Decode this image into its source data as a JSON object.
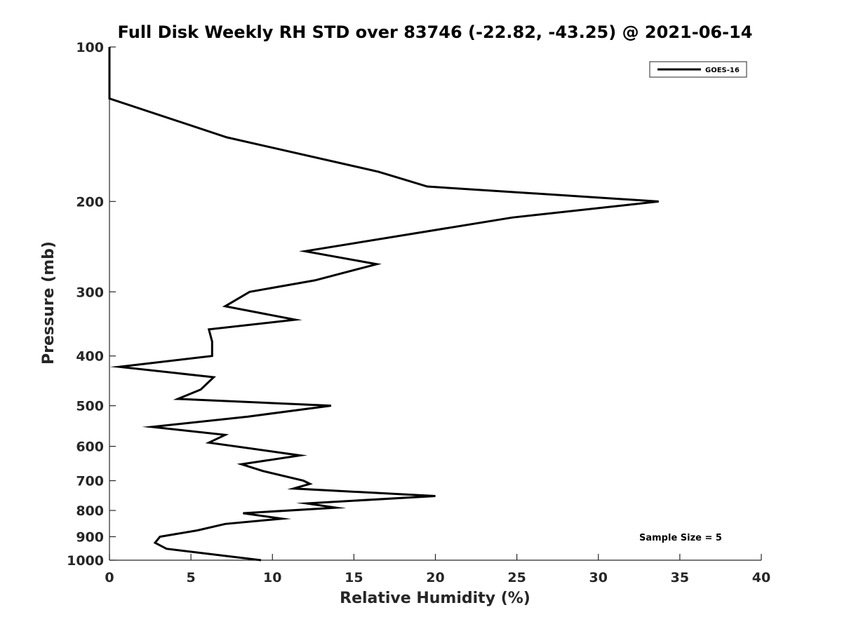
{
  "chart_data": {
    "type": "line",
    "title": "Full Disk Weekly RH STD over 83746 (-22.82, -43.25) @ 2021-06-14",
    "xlabel": "Relative Humidity (%)",
    "ylabel": "Pressure (mb)",
    "xlim": [
      0,
      40
    ],
    "ylim": [
      100,
      1000
    ],
    "yscale": "log",
    "y_reversed": true,
    "x_ticks": [
      0,
      5,
      10,
      15,
      20,
      25,
      30,
      35,
      40
    ],
    "y_ticks": [
      100,
      200,
      300,
      400,
      500,
      600,
      700,
      800,
      900,
      1000
    ],
    "grid": false,
    "legend": {
      "position": "top-right"
    },
    "series": [
      {
        "name": "GOES-16",
        "color": "#000000",
        "x": [
          0,
          0,
          7.2,
          16.5,
          19.5,
          33.7,
          24.7,
          12.0,
          16.4,
          12.6,
          8.6,
          7.1,
          11.4,
          6.1,
          6.3,
          6.3,
          0.6,
          6.4,
          5.6,
          4.2,
          13.6,
          8.5,
          2.6,
          7.1,
          6.1,
          11.7,
          8.1,
          9.4,
          11.9,
          12.3,
          11.3,
          20.0,
          12.1,
          13.9,
          8.2,
          10.6,
          7.1,
          5.4,
          3.1,
          2.8,
          3.5,
          9.3
        ],
        "y": [
          100,
          126,
          150,
          175,
          187,
          200,
          215,
          250,
          265,
          285,
          300,
          320,
          340,
          355,
          375,
          400,
          420,
          440,
          465,
          485,
          500,
          525,
          550,
          570,
          590,
          625,
          650,
          670,
          700,
          710,
          725,
          750,
          775,
          790,
          810,
          830,
          850,
          875,
          900,
          925,
          950,
          1000
        ]
      }
    ],
    "annotations": [
      "Sample Size = 5"
    ]
  }
}
